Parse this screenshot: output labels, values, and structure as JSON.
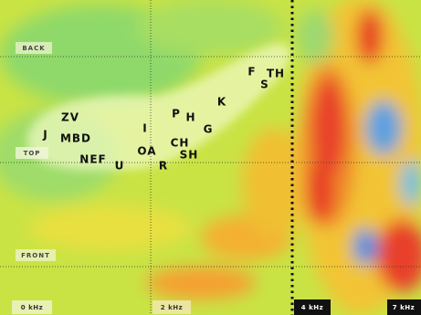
{
  "row_labels": [
    "BACK",
    "TOP",
    "FRONT"
  ],
  "frequency_labels": [
    "0 kHz",
    "2 kHz",
    "4 kHz",
    "7 kHz"
  ],
  "phonemes": [
    "F",
    "TH",
    "S",
    "K",
    "P",
    "H",
    "G",
    "ZV",
    "I",
    "J",
    "MBD",
    "CH",
    "OA",
    "SH",
    "NEF",
    "U",
    "R"
  ]
}
